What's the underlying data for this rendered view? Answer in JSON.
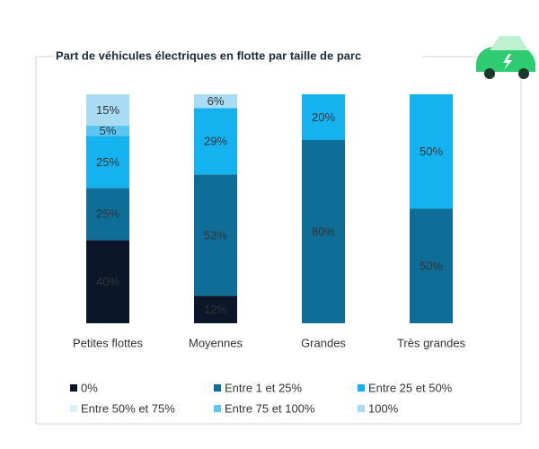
{
  "chart_data": {
    "type": "stacked_bar_100",
    "title": "Part de véhicules électriques en flotte par taille de parc",
    "categories": [
      "Petites flottes",
      "Moyennes",
      "Grandes",
      "Très grandes"
    ],
    "series": [
      {
        "name": "0%",
        "color": "#0b1729",
        "values": [
          40,
          12,
          null,
          null
        ],
        "value_labels": [
          "40%",
          "12%",
          null,
          null
        ]
      },
      {
        "name": "Entre 1 et 25%",
        "color": "#0e6e97",
        "values": [
          25,
          53,
          80,
          50
        ],
        "value_labels": [
          "25%",
          "53%",
          "80%",
          "50%"
        ]
      },
      {
        "name": "Entre 25 et 50%",
        "color": "#14b2ee",
        "values": [
          25,
          29,
          20,
          50
        ],
        "value_labels": [
          "25%",
          "29%",
          "20%",
          "50%"
        ]
      },
      {
        "name": "Entre 50% et 75%",
        "color": "#d7eff9",
        "values": [
          null,
          null,
          null,
          null
        ],
        "value_labels": [
          null,
          null,
          null,
          null
        ]
      },
      {
        "name": "Entre 75 et 100%",
        "color": "#5cc6f2",
        "values": [
          5,
          null,
          null,
          null
        ],
        "value_labels": [
          "5%",
          null,
          null,
          null
        ]
      },
      {
        "name": "100%",
        "color": "#a9dcf4",
        "values": [
          15,
          6,
          null,
          null
        ],
        "value_labels": [
          "15%",
          "6%",
          null,
          null
        ]
      }
    ]
  }
}
